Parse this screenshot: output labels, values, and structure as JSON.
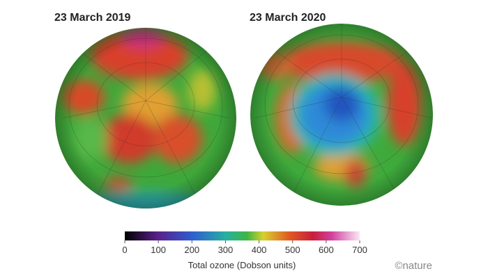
{
  "panels": [
    {
      "title": "23 March 2019"
    },
    {
      "title": "23 March 2020"
    }
  ],
  "colorbar": {
    "label": "Total ozone (Dobson units)",
    "range": [
      0,
      700
    ],
    "ticks": [
      0,
      100,
      200,
      300,
      400,
      500,
      600,
      700
    ]
  },
  "credit": "©nature"
}
